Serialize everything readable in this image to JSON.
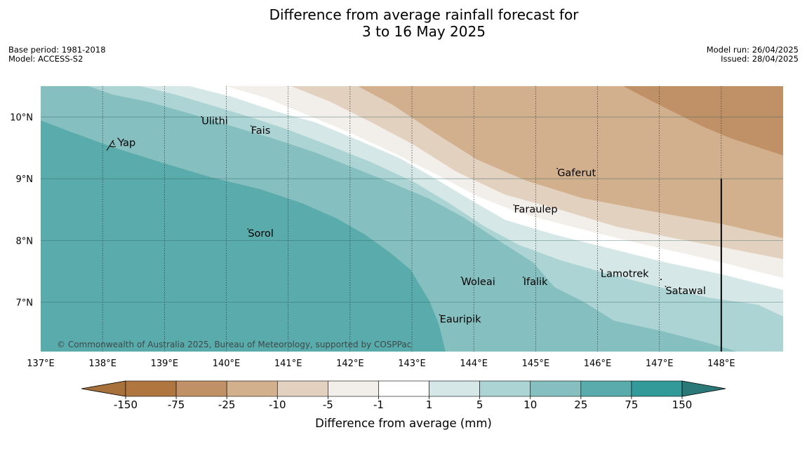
{
  "title_line1": "Difference from average rainfall forecast for",
  "title_line2": "3 to 16 May 2025",
  "meta_left": [
    "Base period: 1981-2018",
    "Model: ACCESS-S2"
  ],
  "meta_right": [
    "Model run: 26/04/2025",
    "Issued: 28/04/2025"
  ],
  "copyright": "© Commonwealth of Australia 2025, Bureau of Meteorology, supported by COSPPac",
  "map": {
    "lon_range": [
      137,
      149
    ],
    "lat_range": [
      6.2,
      10.5
    ],
    "lon_ticks": [
      {
        "value": 137,
        "label": "137°E"
      },
      {
        "value": 138,
        "label": "138°E"
      },
      {
        "value": 139,
        "label": "139°E"
      },
      {
        "value": 140,
        "label": "140°E"
      },
      {
        "value": 141,
        "label": "141°E"
      },
      {
        "value": 142,
        "label": "142°E"
      },
      {
        "value": 143,
        "label": "143°E"
      },
      {
        "value": 144,
        "label": "144°E"
      },
      {
        "value": 145,
        "label": "145°E"
      },
      {
        "value": 146,
        "label": "146°E"
      },
      {
        "value": 147,
        "label": "147°E"
      },
      {
        "value": 148,
        "label": "148°E"
      }
    ],
    "lat_ticks": [
      {
        "value": 7,
        "label": "7°N"
      },
      {
        "value": 8,
        "label": "8°N"
      },
      {
        "value": 9,
        "label": "9°N"
      },
      {
        "value": 10,
        "label": "10°N"
      }
    ],
    "boundary_line": {
      "lon": 148,
      "lat_from": 6.2,
      "lat_to": 9
    }
  },
  "places": [
    {
      "name": "Yap",
      "lon": 138.25,
      "lat": 9.53
    },
    {
      "name": "Ulithi",
      "lon": 139.6,
      "lat": 9.88
    },
    {
      "name": "Fais",
      "lon": 140.4,
      "lat": 9.73
    },
    {
      "name": "Gaferut",
      "lon": 145.35,
      "lat": 9.04
    },
    {
      "name": "Faraulep",
      "lon": 144.65,
      "lat": 8.45
    },
    {
      "name": "Sorol",
      "lon": 140.35,
      "lat": 8.06
    },
    {
      "name": "Woleai",
      "lon": 143.8,
      "lat": 7.28
    },
    {
      "name": "Ifalik",
      "lon": 144.8,
      "lat": 7.28
    },
    {
      "name": "Lamotrek",
      "lon": 146.05,
      "lat": 7.41
    },
    {
      "name": "Satawal",
      "lon": 147.1,
      "lat": 7.13
    },
    {
      "name": "Eauripik",
      "lon": 143.45,
      "lat": 6.67
    }
  ],
  "colorbar": {
    "label": "Difference from average (mm)",
    "ticks": [
      "-150",
      "-75",
      "-25",
      "-10",
      "-5",
      "-1",
      "1",
      "5",
      "10",
      "25",
      "75",
      "150"
    ],
    "colors": [
      "#a8703a",
      "#af7640",
      "#c09066",
      "#d2b08e",
      "#e3d1c0",
      "#f2eee9",
      "#ffffff",
      "#d5e8e7",
      "#acd4d4",
      "#85bfbf",
      "#5aabac",
      "#339999",
      "#2a7878"
    ]
  }
}
